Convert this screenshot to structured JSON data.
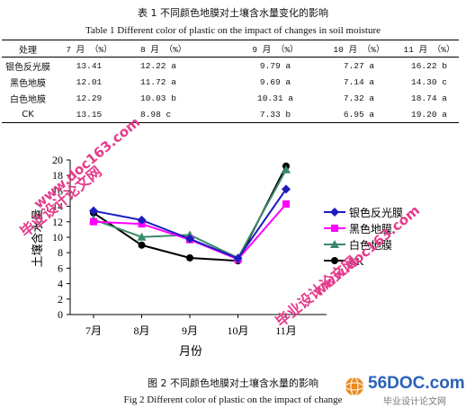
{
  "table": {
    "title_cn": "表 1 不同颜色地膜对土壤含水量变化的影响",
    "title_en": "Table 1    Different color of plastic on the impact of changes in soil moisture",
    "headers": [
      "处理",
      "7 月 （%）",
      "8 月 （%）",
      "9 月 （%）",
      "10 月 （%）",
      "11 月 （%）"
    ],
    "rows": [
      [
        "银色反光膜",
        "13.41",
        "12.22 a",
        "9.79 a",
        "7.27 a",
        "16.22 b"
      ],
      [
        "黑色地膜",
        "12.01",
        "11.72 a",
        "9.69 a",
        "7.14 a",
        "14.30 c"
      ],
      [
        "白色地膜",
        "12.29",
        "10.03 b",
        "10.31 a",
        "7.32 a",
        "18.74 a"
      ],
      [
        "CK",
        "13.15",
        "8.98 c",
        "7.33 b",
        "6.95 a",
        "19.20 a"
      ]
    ]
  },
  "chart_data": {
    "type": "line",
    "categories": [
      "7月",
      "8月",
      "9月",
      "10月",
      "11月"
    ],
    "xlabel": "月份",
    "ylabel": "土壤含水量",
    "ylim": [
      0,
      20
    ],
    "yticks": [
      "0",
      "2",
      "4",
      "6",
      "8",
      "10",
      "12",
      "14",
      "16",
      "18",
      "20"
    ],
    "grid": false,
    "legend_position": "right",
    "series": [
      {
        "name": "银色反光膜",
        "values": [
          13.41,
          12.22,
          9.79,
          7.27,
          16.22
        ],
        "color": "#1c1cbf",
        "marker": "diamond"
      },
      {
        "name": "黑色地膜",
        "values": [
          12.01,
          11.72,
          9.69,
          7.14,
          14.3
        ],
        "color": "#ff00ff",
        "marker": "square"
      },
      {
        "name": "白色地膜",
        "values": [
          12.29,
          10.03,
          10.31,
          7.32,
          18.74
        ],
        "color": "#3a8a6a",
        "marker": "triangle"
      },
      {
        "name": "CK",
        "values": [
          13.15,
          8.98,
          7.33,
          6.95,
          19.2
        ],
        "color": "#000000",
        "marker": "circle"
      }
    ]
  },
  "figure": {
    "caption_cn": "图 2 不同颜色地膜对土壤含水量的影响",
    "caption_en": "Fig 2    Different color of plastic on the impact of change"
  },
  "watermarks": {
    "site_cn": "毕业设计论文网",
    "site_url": "www.doc163.com",
    "logo": "56DOC.com",
    "logo_cn": "毕业设计论文网"
  }
}
